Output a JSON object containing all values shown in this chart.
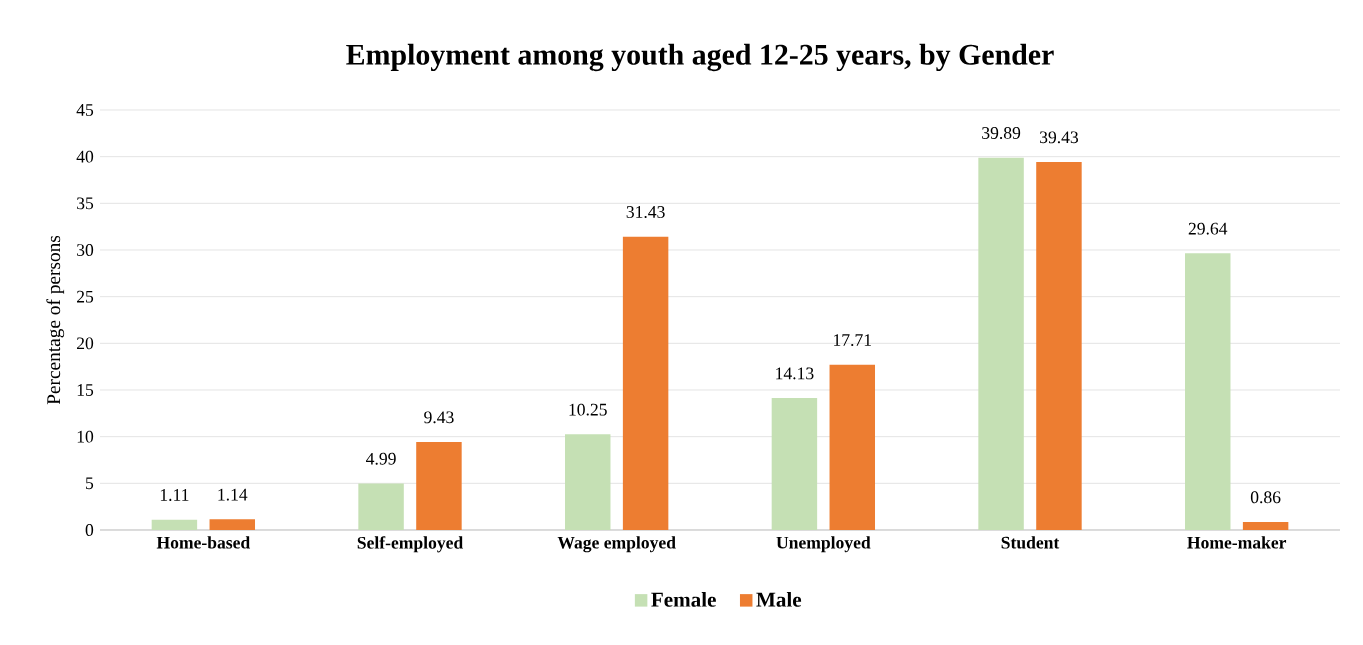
{
  "chart_data": {
    "type": "bar",
    "title": "Employment among youth aged 12-25 years, by Gender",
    "ylabel": "Percentage of persons",
    "categories": [
      "Home-based",
      "Self-employed",
      "Wage employed",
      "Unemployed",
      "Student",
      "Home-maker"
    ],
    "series": [
      {
        "name": "Female",
        "color": "#c5e0b4",
        "values": [
          1.11,
          4.99,
          10.25,
          14.13,
          39.89,
          29.64
        ]
      },
      {
        "name": "Male",
        "color": "#ed7d31",
        "values": [
          1.14,
          9.43,
          31.43,
          17.71,
          39.43,
          0.86
        ]
      }
    ],
    "ylim": [
      0,
      45
    ],
    "yticks": [
      0,
      5,
      10,
      15,
      20,
      25,
      30,
      35,
      40,
      45
    ],
    "grid": "y",
    "legend": "bottom",
    "data_labels": true
  }
}
